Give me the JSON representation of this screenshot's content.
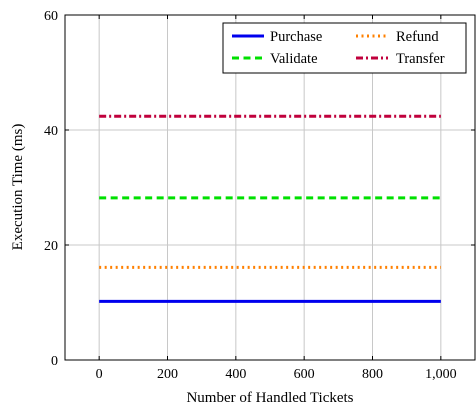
{
  "chart_data": {
    "type": "line",
    "title": "",
    "xlabel": "Number of Handled Tickets",
    "ylabel": "Execution Time (ms)",
    "xlim": [
      -100,
      1100
    ],
    "ylim": [
      0,
      60
    ],
    "x_ticks": [
      0,
      200,
      400,
      600,
      800,
      1000
    ],
    "x_tick_labels": [
      "0",
      "200",
      "400",
      "600",
      "800",
      "1,000"
    ],
    "y_ticks": [
      0,
      20,
      40,
      60
    ],
    "y_tick_labels": [
      "0",
      "20",
      "40",
      "60"
    ],
    "grid": true,
    "legend_position": "top-right",
    "series": [
      {
        "name": "Purchase",
        "color": "#0000ee",
        "style": "solid",
        "x": [
          0,
          1000
        ],
        "y": [
          10.2,
          10.2
        ]
      },
      {
        "name": "Refund",
        "color": "#ff8000",
        "style": "dotted",
        "x": [
          0,
          1000
        ],
        "y": [
          16.1,
          16.1
        ]
      },
      {
        "name": "Validate",
        "color": "#00e000",
        "style": "dashed",
        "x": [
          0,
          1000
        ],
        "y": [
          28.2,
          28.2
        ]
      },
      {
        "name": "Transfer",
        "color": "#c0003c",
        "style": "dashdot",
        "x": [
          0,
          1000
        ],
        "y": [
          42.4,
          42.4
        ]
      }
    ]
  }
}
